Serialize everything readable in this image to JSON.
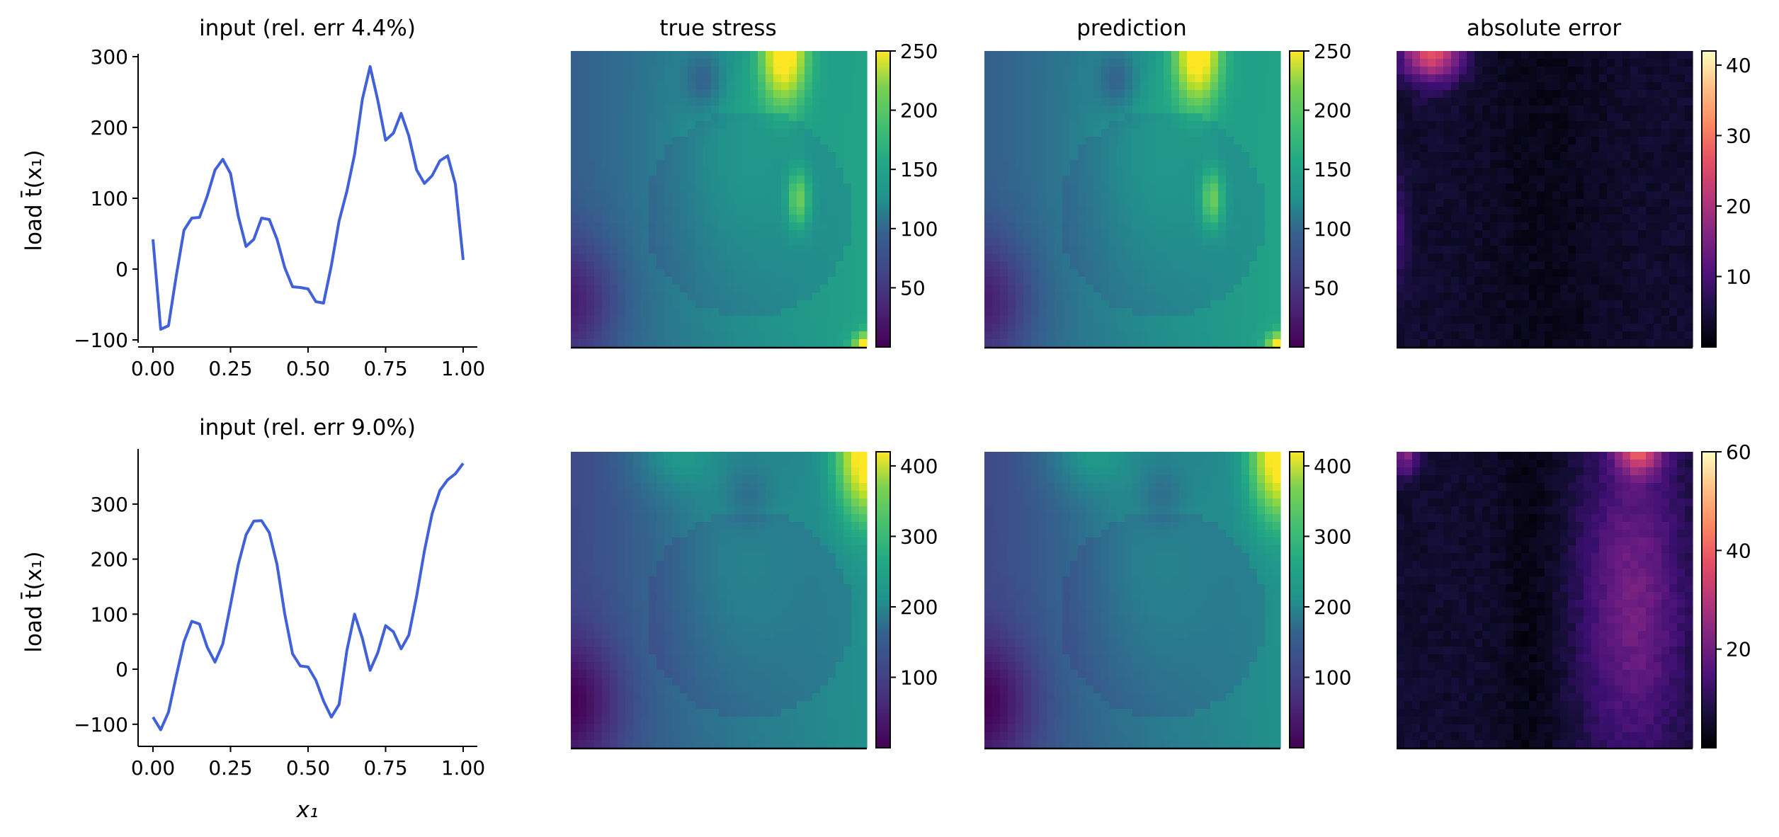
{
  "chart_data": [
    {
      "type": "line",
      "title": "input (rel. err 4.4%)",
      "ylabel": "load t̄(x₁)",
      "xlabel": "",
      "xlim": [
        0.0,
        1.0
      ],
      "ylim": [
        -100,
        300
      ],
      "xticks": [
        "0.00",
        "0.25",
        "0.50",
        "0.75",
        "1.00"
      ],
      "yticks": [
        "−100",
        "0",
        "100",
        "200",
        "300"
      ],
      "color": "#4161d9",
      "x": [
        0.0,
        0.025,
        0.05,
        0.075,
        0.1,
        0.125,
        0.15,
        0.175,
        0.2,
        0.225,
        0.25,
        0.275,
        0.3,
        0.325,
        0.35,
        0.375,
        0.4,
        0.425,
        0.45,
        0.475,
        0.5,
        0.525,
        0.55,
        0.575,
        0.6,
        0.625,
        0.65,
        0.675,
        0.7,
        0.725,
        0.75,
        0.775,
        0.8,
        0.825,
        0.85,
        0.875,
        0.9,
        0.925,
        0.95,
        0.975,
        1.0
      ],
      "y": [
        42,
        -85,
        -80,
        -10,
        55,
        72,
        73,
        103,
        140,
        155,
        135,
        75,
        32,
        42,
        72,
        70,
        42,
        2,
        -25,
        -26,
        -28,
        -46,
        -48,
        5,
        68,
        110,
        162,
        240,
        286,
        238,
        182,
        192,
        220,
        188,
        140,
        121,
        132,
        153,
        160,
        120,
        13
      ]
    },
    {
      "type": "heatmap",
      "title": "true stress",
      "cmap": "viridis",
      "colorbar_ticks": [
        "50",
        "100",
        "150",
        "200",
        "250"
      ],
      "vmin": 0,
      "vmax": 250
    },
    {
      "type": "heatmap",
      "title": "prediction",
      "cmap": "viridis",
      "colorbar_ticks": [
        "50",
        "100",
        "150",
        "200",
        "250"
      ],
      "vmin": 0,
      "vmax": 250
    },
    {
      "type": "heatmap",
      "title": "absolute error",
      "cmap": "magma",
      "colorbar_ticks": [
        "10",
        "20",
        "30",
        "40"
      ],
      "vmin": 0,
      "vmax": 42
    },
    {
      "type": "line",
      "title": "input (rel. err 9.0%)",
      "ylabel": "load t̄(x₁)",
      "xlabel": "x₁",
      "xlim": [
        0.0,
        1.0
      ],
      "ylim": [
        -135,
        395
      ],
      "xticks": [
        "0.00",
        "0.25",
        "0.50",
        "0.75",
        "1.00"
      ],
      "yticks": [
        "−100",
        "0",
        "100",
        "200",
        "300"
      ],
      "color": "#4161d9",
      "x": [
        0.0,
        0.025,
        0.05,
        0.075,
        0.1,
        0.125,
        0.15,
        0.175,
        0.2,
        0.225,
        0.25,
        0.275,
        0.3,
        0.325,
        0.35,
        0.375,
        0.4,
        0.425,
        0.45,
        0.475,
        0.5,
        0.525,
        0.55,
        0.575,
        0.6,
        0.625,
        0.65,
        0.675,
        0.7,
        0.725,
        0.75,
        0.775,
        0.8,
        0.825,
        0.85,
        0.875,
        0.9,
        0.925,
        0.95,
        0.975,
        1.0
      ],
      "y": [
        -87,
        -110,
        -78,
        -13,
        50,
        87,
        82,
        40,
        13,
        46,
        117,
        190,
        244,
        269,
        270,
        248,
        190,
        100,
        28,
        6,
        4,
        -20,
        -58,
        -87,
        -64,
        34,
        100,
        56,
        -2,
        30,
        79,
        68,
        37,
        62,
        133,
        215,
        283,
        325,
        344,
        355,
        374
      ]
    },
    {
      "type": "heatmap",
      "title": "",
      "cmap": "viridis",
      "colorbar_ticks": [
        "100",
        "200",
        "300",
        "400"
      ],
      "vmin": 0,
      "vmax": 420
    },
    {
      "type": "heatmap",
      "title": "",
      "cmap": "viridis",
      "colorbar_ticks": [
        "100",
        "200",
        "300",
        "400"
      ],
      "vmin": 0,
      "vmax": 420
    },
    {
      "type": "heatmap",
      "title": "",
      "cmap": "magma",
      "colorbar_ticks": [
        "20",
        "40",
        "60"
      ],
      "vmin": 0,
      "vmax": 60
    }
  ]
}
